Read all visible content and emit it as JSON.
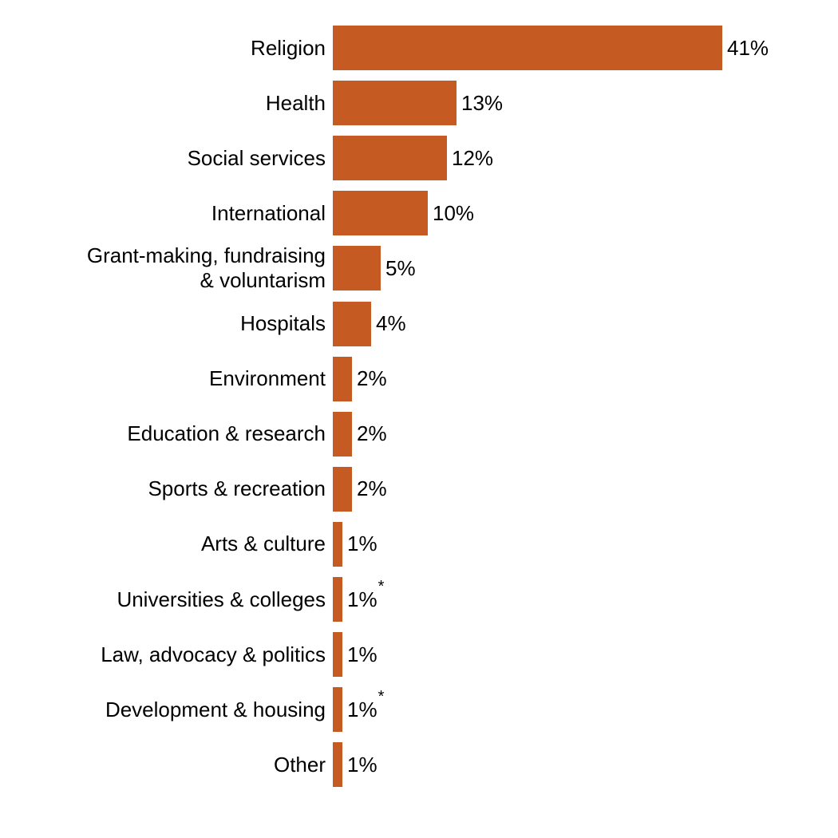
{
  "chart_data": {
    "type": "bar",
    "orientation": "horizontal",
    "title": "",
    "xlabel": "",
    "ylabel": "",
    "bar_color": "#C55A22",
    "grid": false,
    "legend": null,
    "categories": [
      "Religion",
      "Health",
      "Social services",
      "International",
      "Grant-making, fundraising\n& voluntarism",
      "Hospitals",
      "Environment",
      "Education & research",
      "Sports & recreation",
      "Arts & culture",
      "Universities & colleges",
      "Law, advocacy & politics",
      "Development & housing",
      "Other"
    ],
    "values": [
      41,
      13,
      12,
      10,
      5,
      4,
      2,
      2,
      2,
      1,
      1,
      1,
      1,
      1
    ],
    "value_labels": [
      "41%",
      "13%",
      "12%",
      "10%",
      "5%",
      "4%",
      "2%",
      "2%",
      "2%",
      "1%",
      "1%",
      "1%",
      "1%",
      "1%"
    ],
    "annotations": [
      "",
      "",
      "",
      "",
      "",
      "",
      "",
      "",
      "",
      "",
      "*",
      "",
      "*",
      ""
    ],
    "xlim": [
      0,
      41
    ]
  }
}
